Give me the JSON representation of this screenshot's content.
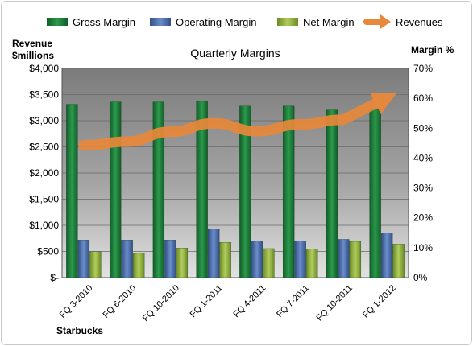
{
  "chart_data": {
    "type": "bar",
    "title": "Quarterly Margins",
    "categories": [
      "FQ 3-2010",
      "FQ 6-2010",
      "FQ 10-2010",
      "FQ 1-2011",
      "FQ 4-2011",
      "FQ 7-2011",
      "FQ 10-2011",
      "FQ 1-2012"
    ],
    "series": [
      {
        "name": "Gross Margin",
        "axis": "right",
        "color": "#1f7a3a",
        "values": [
          58,
          58.8,
          58.8,
          59.2,
          57.4,
          57.4,
          56.1,
          56.3
        ]
      },
      {
        "name": "Operating Margin",
        "axis": "right",
        "color": "#4a6fae",
        "values": [
          12.6,
          12.6,
          12.6,
          16.2,
          12.3,
          12.3,
          12.8,
          15
        ]
      },
      {
        "name": "Net Margin",
        "axis": "right",
        "color": "#8fae3c",
        "values": [
          8.7,
          8.1,
          9.9,
          11.8,
          9.7,
          9.6,
          12.1,
          11.2
        ]
      },
      {
        "name": "Revenues",
        "axis": "left",
        "type": "line",
        "color": "#e8883a",
        "values": [
          2530,
          2600,
          2790,
          2950,
          2800,
          2930,
          3020,
          3440
        ]
      }
    ],
    "ylabel": "Revenue $millions",
    "ylim": [
      0,
      4000
    ],
    "yticks": [
      "$-",
      "$500",
      "$1,000",
      "$1,500",
      "$2,000",
      "$2,500",
      "$3,000",
      "$3,500",
      "$4,000"
    ],
    "y2label": "Margin %",
    "y2lim": [
      0,
      70
    ],
    "y2ticks": [
      "0%",
      "10%",
      "20%",
      "30%",
      "40%",
      "50%",
      "60%",
      "70%"
    ],
    "grid": true,
    "legend_position": "top",
    "footer": "Starbucks"
  }
}
